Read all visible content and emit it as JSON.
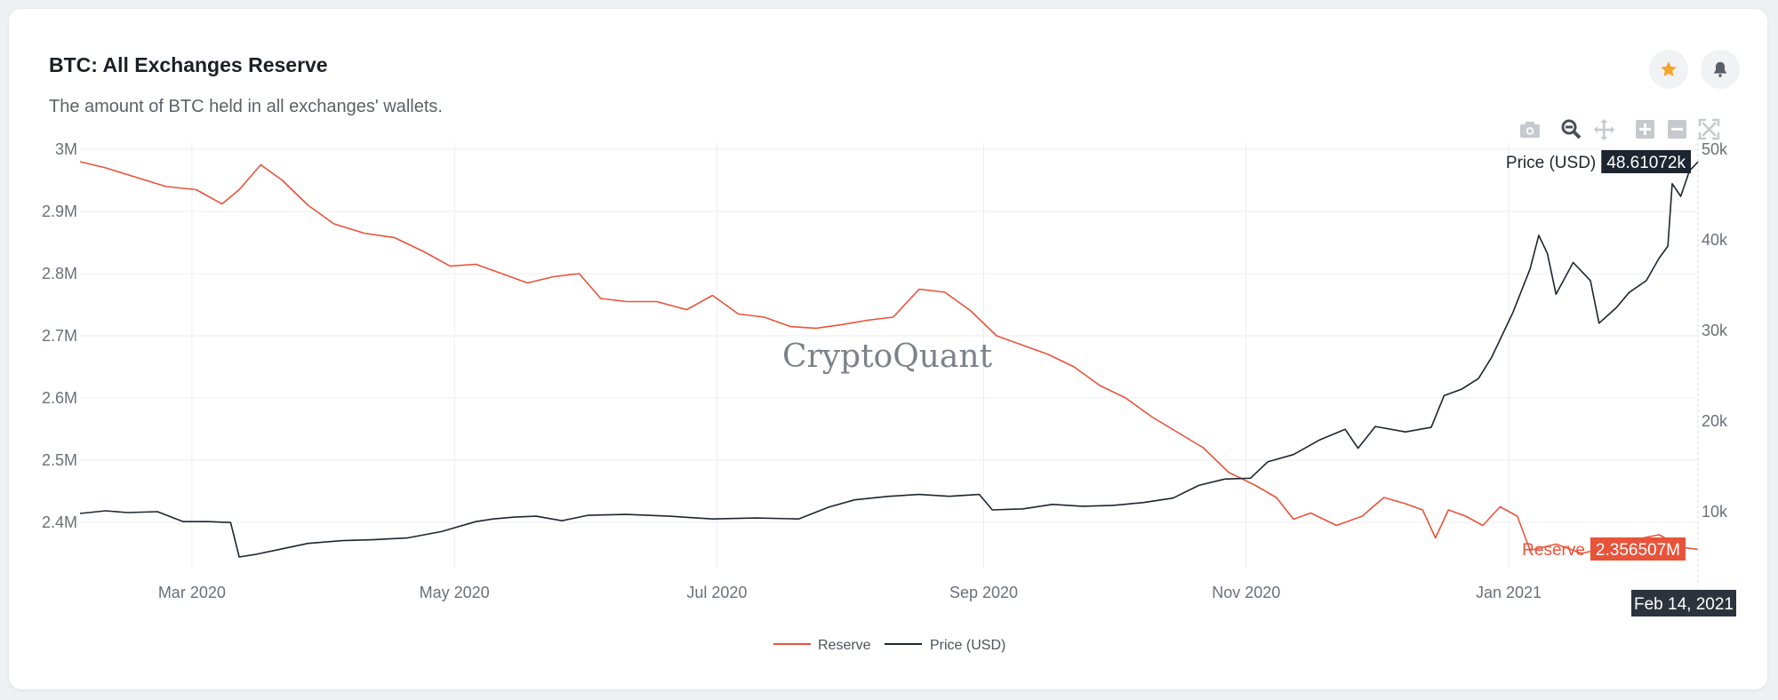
{
  "header": {
    "title": "BTC: All Exchanges Reserve",
    "subtitle": "The amount of BTC held in all exchanges' wallets.",
    "star_icon": "star-icon",
    "bell_icon": "bell-icon"
  },
  "toolbar": {
    "icons": [
      "camera-icon",
      "zoom-icon",
      "pan-icon",
      "zoom-in-icon",
      "zoom-out-icon",
      "autoscale-icon"
    ]
  },
  "watermark": "CryptoQuant",
  "colors": {
    "reserve": "#e8533a",
    "price": "#1e2530",
    "accent_star": "#f4a52a"
  },
  "chart_data": {
    "type": "line",
    "x_range": [
      "2020-02-04",
      "2021-02-14"
    ],
    "x_ticks": [
      "2020-03-01",
      "2020-05-01",
      "2020-07-01",
      "2020-09-01",
      "2020-11-01",
      "2021-01-01"
    ],
    "x_tick_labels": [
      "Mar 2020",
      "May 2020",
      "Jul 2020",
      "Sep 2020",
      "Nov 2020",
      "Jan 2021"
    ],
    "y_left": {
      "ticks": [
        2400000,
        2500000,
        2600000,
        2700000,
        2800000,
        2900000,
        3000000
      ],
      "labels": [
        "2.4M",
        "2.5M",
        "2.6M",
        "2.7M",
        "2.8M",
        "2.9M",
        "3M"
      ]
    },
    "y_right": {
      "ticks": [
        10000,
        20000,
        30000,
        40000,
        50000
      ],
      "labels": [
        "10k",
        "20k",
        "30k",
        "40k",
        "50k"
      ]
    },
    "grid": true,
    "legend": "bottom-center",
    "series": [
      {
        "name": "Reserve",
        "axis": "left",
        "points": [
          [
            "2020-02-04",
            2980000
          ],
          [
            "2020-02-10",
            2970000
          ],
          [
            "2020-02-17",
            2955000
          ],
          [
            "2020-02-24",
            2940000
          ],
          [
            "2020-03-02",
            2935000
          ],
          [
            "2020-03-08",
            2912000
          ],
          [
            "2020-03-12",
            2935000
          ],
          [
            "2020-03-17",
            2975000
          ],
          [
            "2020-03-22",
            2950000
          ],
          [
            "2020-03-28",
            2910000
          ],
          [
            "2020-04-03",
            2880000
          ],
          [
            "2020-04-10",
            2865000
          ],
          [
            "2020-04-17",
            2858000
          ],
          [
            "2020-04-24",
            2835000
          ],
          [
            "2020-04-30",
            2812000
          ],
          [
            "2020-05-06",
            2815000
          ],
          [
            "2020-05-12",
            2800000
          ],
          [
            "2020-05-18",
            2785000
          ],
          [
            "2020-05-24",
            2795000
          ],
          [
            "2020-05-30",
            2800000
          ],
          [
            "2020-06-04",
            2760000
          ],
          [
            "2020-06-10",
            2755000
          ],
          [
            "2020-06-17",
            2755000
          ],
          [
            "2020-06-24",
            2742000
          ],
          [
            "2020-06-30",
            2765000
          ],
          [
            "2020-07-06",
            2735000
          ],
          [
            "2020-07-12",
            2730000
          ],
          [
            "2020-07-18",
            2715000
          ],
          [
            "2020-07-24",
            2712000
          ],
          [
            "2020-07-30",
            2718000
          ],
          [
            "2020-08-05",
            2725000
          ],
          [
            "2020-08-11",
            2730000
          ],
          [
            "2020-08-17",
            2775000
          ],
          [
            "2020-08-23",
            2770000
          ],
          [
            "2020-08-29",
            2740000
          ],
          [
            "2020-09-04",
            2700000
          ],
          [
            "2020-09-10",
            2685000
          ],
          [
            "2020-09-16",
            2670000
          ],
          [
            "2020-09-22",
            2650000
          ],
          [
            "2020-09-28",
            2620000
          ],
          [
            "2020-10-04",
            2600000
          ],
          [
            "2020-10-10",
            2570000
          ],
          [
            "2020-10-16",
            2545000
          ],
          [
            "2020-10-22",
            2520000
          ],
          [
            "2020-10-28",
            2480000
          ],
          [
            "2020-11-03",
            2460000
          ],
          [
            "2020-11-08",
            2440000
          ],
          [
            "2020-11-12",
            2405000
          ],
          [
            "2020-11-16",
            2415000
          ],
          [
            "2020-11-22",
            2395000
          ],
          [
            "2020-11-28",
            2410000
          ],
          [
            "2020-12-03",
            2440000
          ],
          [
            "2020-12-08",
            2430000
          ],
          [
            "2020-12-12",
            2420000
          ],
          [
            "2020-12-15",
            2375000
          ],
          [
            "2020-12-18",
            2420000
          ],
          [
            "2020-12-22",
            2410000
          ],
          [
            "2020-12-26",
            2395000
          ],
          [
            "2020-12-30",
            2425000
          ],
          [
            "2021-01-03",
            2410000
          ],
          [
            "2021-01-06",
            2355000
          ],
          [
            "2021-01-12",
            2365000
          ],
          [
            "2021-01-18",
            2350000
          ],
          [
            "2021-01-24",
            2360000
          ],
          [
            "2021-01-30",
            2372000
          ],
          [
            "2021-02-05",
            2380000
          ],
          [
            "2021-02-10",
            2360000
          ],
          [
            "2021-02-14",
            2356507
          ]
        ]
      },
      {
        "name": "Price (USD)",
        "axis": "right",
        "points": [
          [
            "2020-02-04",
            9800
          ],
          [
            "2020-02-10",
            10100
          ],
          [
            "2020-02-15",
            9900
          ],
          [
            "2020-02-22",
            10000
          ],
          [
            "2020-02-28",
            8900
          ],
          [
            "2020-03-05",
            8900
          ],
          [
            "2020-03-10",
            8800
          ],
          [
            "2020-03-12",
            5000
          ],
          [
            "2020-03-16",
            5300
          ],
          [
            "2020-03-22",
            5900
          ],
          [
            "2020-03-28",
            6500
          ],
          [
            "2020-04-05",
            6800
          ],
          [
            "2020-04-12",
            6900
          ],
          [
            "2020-04-20",
            7100
          ],
          [
            "2020-04-28",
            7800
          ],
          [
            "2020-05-06",
            8900
          ],
          [
            "2020-05-10",
            9200
          ],
          [
            "2020-05-15",
            9400
          ],
          [
            "2020-05-20",
            9500
          ],
          [
            "2020-05-26",
            9000
          ],
          [
            "2020-06-01",
            9600
          ],
          [
            "2020-06-10",
            9700
          ],
          [
            "2020-06-20",
            9500
          ],
          [
            "2020-06-30",
            9200
          ],
          [
            "2020-07-10",
            9300
          ],
          [
            "2020-07-20",
            9200
          ],
          [
            "2020-07-27",
            10500
          ],
          [
            "2020-08-02",
            11300
          ],
          [
            "2020-08-10",
            11700
          ],
          [
            "2020-08-17",
            11900
          ],
          [
            "2020-08-24",
            11700
          ],
          [
            "2020-08-31",
            11900
          ],
          [
            "2020-09-03",
            10200
          ],
          [
            "2020-09-10",
            10300
          ],
          [
            "2020-09-17",
            10800
          ],
          [
            "2020-09-24",
            10600
          ],
          [
            "2020-10-01",
            10700
          ],
          [
            "2020-10-08",
            11000
          ],
          [
            "2020-10-15",
            11500
          ],
          [
            "2020-10-21",
            12900
          ],
          [
            "2020-10-27",
            13600
          ],
          [
            "2020-11-02",
            13700
          ],
          [
            "2020-11-06",
            15500
          ],
          [
            "2020-11-12",
            16300
          ],
          [
            "2020-11-18",
            17900
          ],
          [
            "2020-11-24",
            19100
          ],
          [
            "2020-11-27",
            17000
          ],
          [
            "2020-12-01",
            19400
          ],
          [
            "2020-12-08",
            18800
          ],
          [
            "2020-12-14",
            19300
          ],
          [
            "2020-12-17",
            22800
          ],
          [
            "2020-12-21",
            23500
          ],
          [
            "2020-12-25",
            24700
          ],
          [
            "2020-12-28",
            27000
          ],
          [
            "2021-01-02",
            32000
          ],
          [
            "2021-01-06",
            36800
          ],
          [
            "2021-01-08",
            40500
          ],
          [
            "2021-01-10",
            38500
          ],
          [
            "2021-01-12",
            34000
          ],
          [
            "2021-01-16",
            37500
          ],
          [
            "2021-01-20",
            35500
          ],
          [
            "2021-01-22",
            30800
          ],
          [
            "2021-01-26",
            32500
          ],
          [
            "2021-01-29",
            34200
          ],
          [
            "2021-02-02",
            35500
          ],
          [
            "2021-02-05",
            38000
          ],
          [
            "2021-02-07",
            39300
          ],
          [
            "2021-02-08",
            46200
          ],
          [
            "2021-02-10",
            44800
          ],
          [
            "2021-02-12",
            47600
          ],
          [
            "2021-02-14",
            48610.72
          ]
        ]
      }
    ],
    "hover": {
      "date_label": "Feb 14, 2021",
      "reserve_name": "Reserve",
      "reserve_value": "2.356507M",
      "price_name": "Price (USD)",
      "price_value": "48.61072k"
    }
  }
}
